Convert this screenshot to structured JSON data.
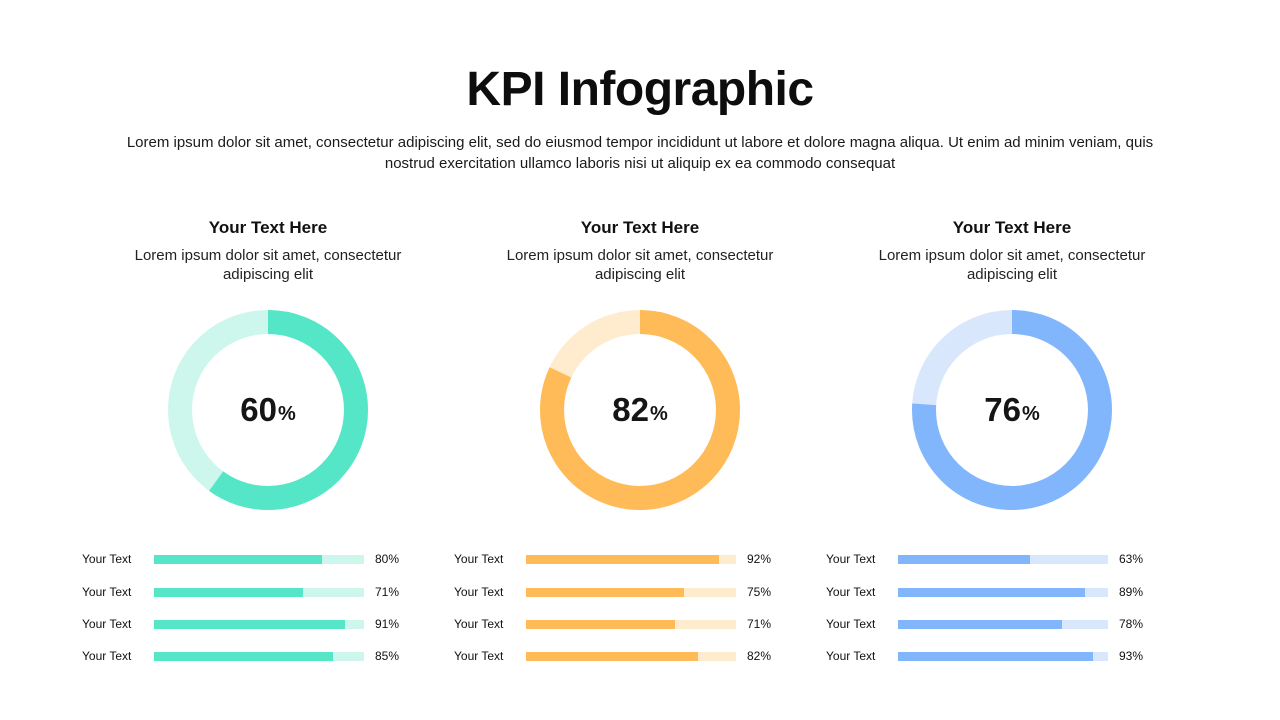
{
  "page": {
    "title": "KPI Infographic",
    "subtitle": "Lorem ipsum dolor sit amet, consectetur adipiscing elit, sed do eiusmod tempor incididunt ut labore et dolore magna aliqua. Ut enim ad minim veniam, quis nostrud exercitation ullamco laboris nisi ut aliquip ex ea commodo consequat"
  },
  "columns": [
    {
      "heading": "Your Text Here",
      "description": "Lorem ipsum dolor sit amet, consectetur adipiscing elit",
      "percent": 60,
      "percent_label": "60",
      "percent_sign": "%",
      "color": "#54e6c6",
      "track_color": "#cdf6ec",
      "bars": [
        {
          "label": "Your Text",
          "value": 80,
          "value_label": "80%"
        },
        {
          "label": "Your Text",
          "value": 71,
          "value_label": "71%"
        },
        {
          "label": "Your Text",
          "value": 91,
          "value_label": "91%"
        },
        {
          "label": "Your Text",
          "value": 85,
          "value_label": "85%"
        }
      ]
    },
    {
      "heading": "Your Text Here",
      "description": "Lorem ipsum dolor sit amet, consectetur adipiscing elit",
      "percent": 82,
      "percent_label": "82",
      "percent_sign": "%",
      "color": "#ffbb57",
      "track_color": "#ffecce",
      "bars": [
        {
          "label": "Your Text",
          "value": 92,
          "value_label": "92%"
        },
        {
          "label": "Your Text",
          "value": 75,
          "value_label": "75%"
        },
        {
          "label": "Your Text",
          "value": 71,
          "value_label": "71%"
        },
        {
          "label": "Your Text",
          "value": 82,
          "value_label": "82%"
        }
      ]
    },
    {
      "heading": "Your Text Here",
      "description": "Lorem ipsum dolor sit amet, consectetur adipiscing elit",
      "percent": 76,
      "percent_label": "76",
      "percent_sign": "%",
      "color": "#82b6fc",
      "track_color": "#d9e7fd",
      "bars": [
        {
          "label": "Your Text",
          "value": 63,
          "value_label": "63%"
        },
        {
          "label": "Your Text",
          "value": 89,
          "value_label": "89%"
        },
        {
          "label": "Your Text",
          "value": 78,
          "value_label": "78%"
        },
        {
          "label": "Your Text",
          "value": 93,
          "value_label": "93%"
        }
      ]
    }
  ],
  "chart_data": [
    {
      "type": "pie",
      "title": "",
      "values": [
        60,
        40
      ]
    },
    {
      "type": "pie",
      "title": "",
      "values": [
        82,
        18
      ]
    },
    {
      "type": "pie",
      "title": "",
      "values": [
        76,
        24
      ]
    },
    {
      "type": "bar",
      "orientation": "horizontal",
      "categories": [
        "Your Text",
        "Your Text",
        "Your Text",
        "Your Text"
      ],
      "values": [
        80,
        71,
        91,
        85
      ],
      "xlim": [
        0,
        100
      ]
    },
    {
      "type": "bar",
      "orientation": "horizontal",
      "categories": [
        "Your Text",
        "Your Text",
        "Your Text",
        "Your Text"
      ],
      "values": [
        92,
        75,
        71,
        82
      ],
      "xlim": [
        0,
        100
      ]
    },
    {
      "type": "bar",
      "orientation": "horizontal",
      "categories": [
        "Your Text",
        "Your Text",
        "Your Text",
        "Your Text"
      ],
      "values": [
        63,
        89,
        78,
        93
      ],
      "xlim": [
        0,
        100
      ]
    }
  ]
}
